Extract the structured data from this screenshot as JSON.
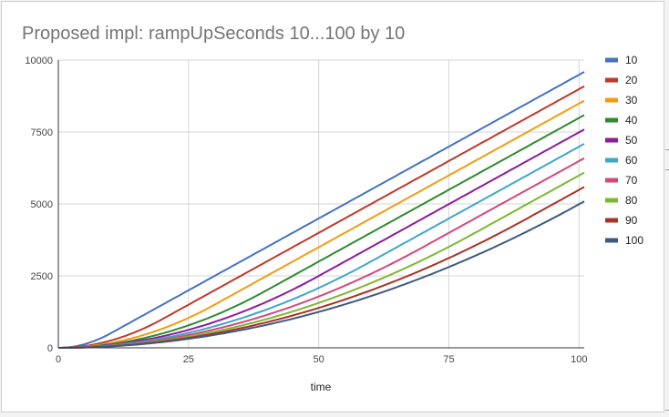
{
  "chart_data": {
    "type": "line",
    "title": "Proposed impl: rampUpSeconds 10...100 by 10",
    "xlabel": "time",
    "ylabel": "",
    "xlim": [
      0,
      101
    ],
    "ylim": [
      0,
      10000
    ],
    "xticks": [
      "0",
      "25",
      "50",
      "75",
      "100"
    ],
    "yticks": [
      "0",
      "2500",
      "5000",
      "7500",
      "10000"
    ],
    "grid": true,
    "legend": "right",
    "x_end": 101,
    "series": [
      {
        "name": "10",
        "color": "#4472c4",
        "ramp": 10,
        "end": 9590
      },
      {
        "name": "20",
        "color": "#c0392b",
        "ramp": 20,
        "end": 9090
      },
      {
        "name": "30",
        "color": "#f39c12",
        "ramp": 30,
        "end": 8590
      },
      {
        "name": "40",
        "color": "#2e8b2e",
        "ramp": 40,
        "end": 8090
      },
      {
        "name": "50",
        "color": "#8e1b9c",
        "ramp": 50,
        "end": 7590
      },
      {
        "name": "60",
        "color": "#3fa7c9",
        "ramp": 60,
        "end": 7090
      },
      {
        "name": "70",
        "color": "#d4477b",
        "ramp": 70,
        "end": 6590
      },
      {
        "name": "80",
        "color": "#7cb82f",
        "ramp": 80,
        "end": 6090
      },
      {
        "name": "90",
        "color": "#a93226",
        "ramp": 90,
        "end": 5590
      },
      {
        "name": "100",
        "color": "#3d5a80",
        "ramp": 100,
        "end": 5090
      }
    ]
  }
}
